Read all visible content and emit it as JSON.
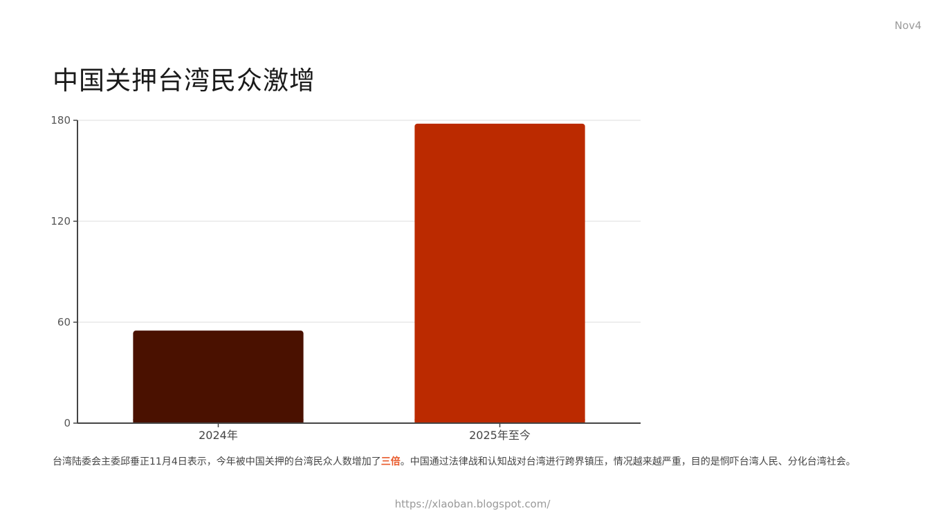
{
  "corner_tag": "Nov4",
  "title": "中国关押台湾民众激增",
  "chart_data": {
    "type": "bar",
    "categories": [
      "2024年",
      "2025年至今"
    ],
    "values": [
      55,
      178
    ],
    "colors": [
      "#4a1100",
      "#bb2a00"
    ],
    "ylim": [
      0,
      180
    ],
    "yticks": [
      0,
      60,
      120,
      180
    ],
    "grid": true
  },
  "caption": {
    "before": "台湾陆委会主委邱垂正11月4日表示，今年被中国关押的台湾民众人数增加了",
    "highlight": "三倍",
    "after": "。中国通过法律战和认知战对台湾进行跨界镇压，情况越来越严重，目的是恫吓台湾人民、分化台湾社会。",
    "highlight_color": "#e8592a"
  },
  "footer_url": "https://xlaoban.blogspot.com/"
}
